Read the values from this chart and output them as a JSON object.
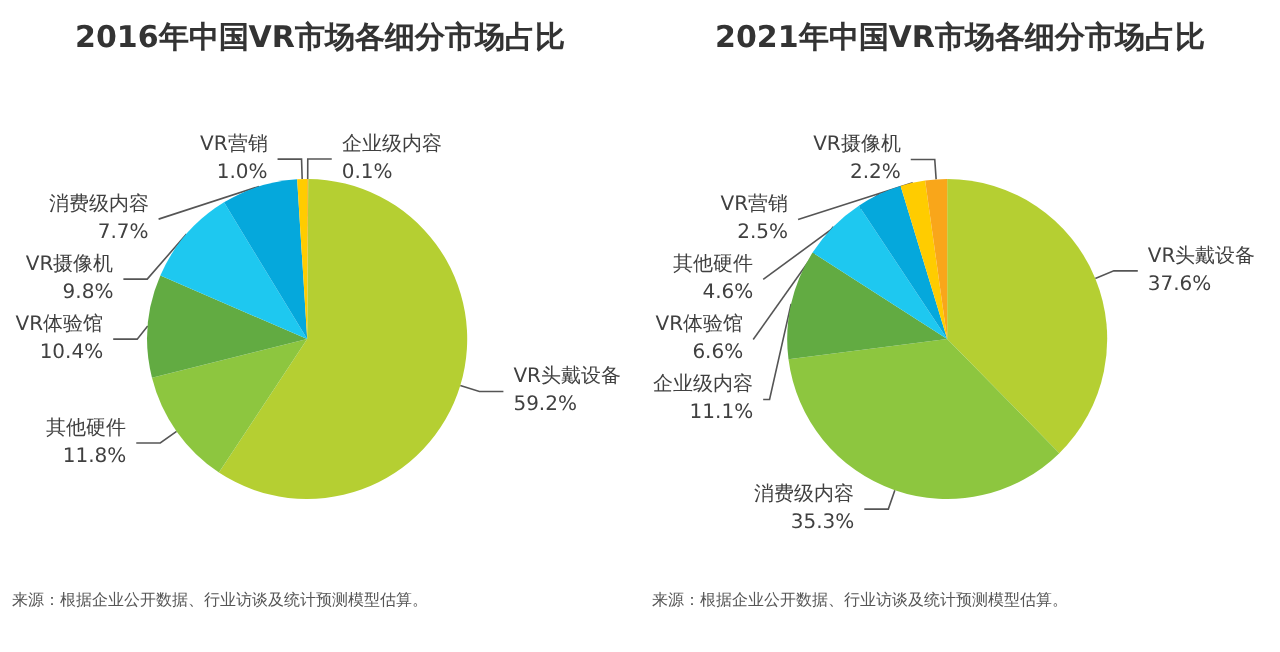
{
  "chart_data": [
    {
      "type": "pie",
      "title": "2016年中国VR市场各细分市场占比",
      "categories": [
        "企业级内容",
        "VR头戴设备",
        "其他硬件",
        "VR体验馆",
        "VR摄像机",
        "消费级内容",
        "VR营销"
      ],
      "values": [
        0.1,
        59.2,
        11.8,
        10.4,
        9.8,
        7.7,
        1.0
      ],
      "value_labels": [
        "0.1%",
        "59.2%",
        "11.8%",
        "10.4%",
        "9.8%",
        "7.7%",
        "1.0%"
      ],
      "colors": [
        "#f9a61a",
        "#b5cf32",
        "#8dc63f",
        "#62ab42",
        "#1ec8f0",
        "#05a8dc",
        "#ffcc00"
      ],
      "annotations": [
        "来源：根据企业公开数据、行业访谈及统计预测模型估算。"
      ]
    },
    {
      "type": "pie",
      "title": "2021年中国VR市场各细分市场占比",
      "categories": [
        "VR头戴设备",
        "消费级内容",
        "企业级内容",
        "VR体验馆",
        "其他硬件",
        "VR营销",
        "VR摄像机"
      ],
      "values": [
        37.6,
        35.3,
        11.1,
        6.6,
        4.6,
        2.5,
        2.2
      ],
      "value_labels": [
        "37.6%",
        "35.3%",
        "11.1%",
        "6.6%",
        "4.6%",
        "2.5%",
        "2.2%"
      ],
      "colors": [
        "#b5cf32",
        "#8dc63f",
        "#62ab42",
        "#1ec8f0",
        "#05a8dc",
        "#ffcc00",
        "#f9a61a"
      ],
      "annotations": [
        "来源：根据企业公开数据、行业访谈及统计预测模型估算。"
      ]
    }
  ]
}
